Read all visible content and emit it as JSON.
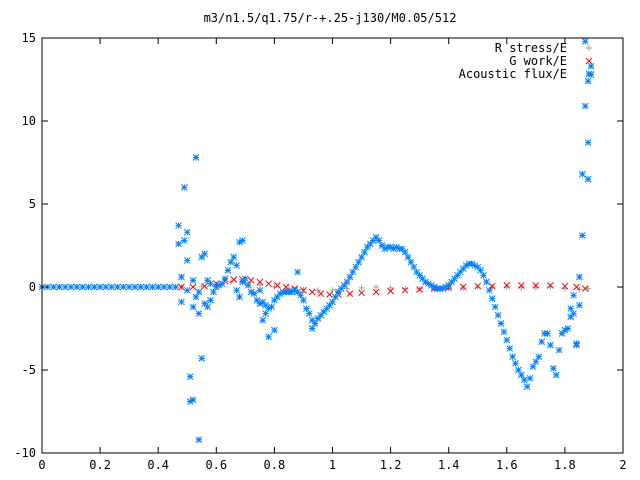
{
  "chart_data": {
    "type": "scatter",
    "title": "m3/n1.5/q1.75/r-+.25-j130/M0.05/512",
    "xlabel": "",
    "ylabel": "",
    "xlim": [
      0,
      2
    ],
    "ylim": [
      -10,
      15
    ],
    "x_ticks": [
      "0",
      "0.2",
      "0.4",
      "0.6",
      "0.8",
      "1",
      "1.2",
      "1.4",
      "1.6",
      "1.8",
      "2"
    ],
    "y_ticks": [
      "-10",
      "-5",
      "0",
      "5",
      "10",
      "15"
    ],
    "grid": false,
    "legend_position": "top-right",
    "series": [
      {
        "name": "R stress/E",
        "marker": "+",
        "color": "#a0a0a0",
        "points": [
          [
            0.48,
            0.0
          ],
          [
            0.55,
            0.05
          ],
          [
            0.6,
            0.15
          ],
          [
            0.65,
            0.3
          ],
          [
            0.7,
            0.25
          ],
          [
            0.75,
            0.1
          ],
          [
            0.8,
            0.0
          ],
          [
            0.85,
            -0.1
          ],
          [
            0.9,
            -0.15
          ],
          [
            0.95,
            -0.2
          ],
          [
            1.0,
            -0.2
          ],
          [
            1.05,
            -0.1
          ],
          [
            1.1,
            -0.05
          ],
          [
            1.15,
            0.0
          ],
          [
            1.2,
            -0.05
          ],
          [
            1.25,
            -0.1
          ],
          [
            1.3,
            -0.1
          ],
          [
            1.35,
            -0.1
          ],
          [
            1.4,
            -0.1
          ],
          [
            1.45,
            -0.05
          ],
          [
            1.5,
            0.0
          ],
          [
            1.55,
            0.0
          ],
          [
            1.6,
            0.0
          ],
          [
            1.65,
            -0.05
          ],
          [
            1.7,
            -0.05
          ],
          [
            1.75,
            0.0
          ],
          [
            1.8,
            -0.1
          ],
          [
            1.85,
            -0.15
          ],
          [
            1.88,
            -0.1
          ]
        ]
      },
      {
        "name": "G work/E",
        "marker": "x",
        "color": "#ff0000",
        "points": [
          [
            0.48,
            0.0
          ],
          [
            0.52,
            0.0
          ],
          [
            0.56,
            0.05
          ],
          [
            0.6,
            0.2
          ],
          [
            0.63,
            0.35
          ],
          [
            0.66,
            0.45
          ],
          [
            0.69,
            0.45
          ],
          [
            0.72,
            0.4
          ],
          [
            0.75,
            0.3
          ],
          [
            0.78,
            0.2
          ],
          [
            0.81,
            0.1
          ],
          [
            0.84,
            0.0
          ],
          [
            0.87,
            -0.1
          ],
          [
            0.9,
            -0.2
          ],
          [
            0.93,
            -0.3
          ],
          [
            0.96,
            -0.4
          ],
          [
            0.99,
            -0.45
          ],
          [
            1.02,
            -0.45
          ],
          [
            1.06,
            -0.4
          ],
          [
            1.1,
            -0.35
          ],
          [
            1.15,
            -0.3
          ],
          [
            1.2,
            -0.25
          ],
          [
            1.25,
            -0.2
          ],
          [
            1.3,
            -0.15
          ],
          [
            1.35,
            -0.1
          ],
          [
            1.4,
            -0.05
          ],
          [
            1.45,
            0.0
          ],
          [
            1.5,
            0.05
          ],
          [
            1.55,
            0.05
          ],
          [
            1.6,
            0.1
          ],
          [
            1.65,
            0.1
          ],
          [
            1.7,
            0.1
          ],
          [
            1.75,
            0.1
          ],
          [
            1.8,
            0.05
          ],
          [
            1.84,
            0.0
          ],
          [
            1.87,
            -0.1
          ]
        ]
      },
      {
        "name": "Acoustic flux/E",
        "marker": "*",
        "color": "#0080ff",
        "points": [
          [
            0.47,
            3.7
          ],
          [
            0.47,
            2.6
          ],
          [
            0.48,
            0.6
          ],
          [
            0.48,
            -0.9
          ],
          [
            0.49,
            6.0
          ],
          [
            0.49,
            2.8
          ],
          [
            0.5,
            3.3
          ],
          [
            0.5,
            1.6
          ],
          [
            0.5,
            -0.2
          ],
          [
            0.51,
            -6.9
          ],
          [
            0.51,
            -5.4
          ],
          [
            0.52,
            -6.8
          ],
          [
            0.52,
            0.4
          ],
          [
            0.52,
            -1.2
          ],
          [
            0.53,
            7.8
          ],
          [
            0.53,
            -0.6
          ],
          [
            0.54,
            -9.2
          ],
          [
            0.54,
            -1.6
          ],
          [
            0.54,
            -0.3
          ],
          [
            0.55,
            1.8
          ],
          [
            0.55,
            -4.3
          ],
          [
            0.56,
            2.0
          ],
          [
            0.56,
            -1.0
          ],
          [
            0.57,
            0.4
          ],
          [
            0.57,
            -1.2
          ],
          [
            0.58,
            -0.8
          ],
          [
            0.58,
            0.2
          ],
          [
            0.59,
            -0.3
          ],
          [
            0.6,
            0.0
          ],
          [
            0.61,
            0.1
          ],
          [
            0.62,
            0.2
          ],
          [
            0.63,
            0.5
          ],
          [
            0.64,
            1.0
          ],
          [
            0.65,
            1.5
          ],
          [
            0.66,
            1.8
          ],
          [
            0.67,
            1.3
          ],
          [
            0.67,
            -0.2
          ],
          [
            0.68,
            2.7
          ],
          [
            0.68,
            -0.6
          ],
          [
            0.69,
            2.8
          ],
          [
            0.69,
            0.3
          ],
          [
            0.7,
            0.5
          ],
          [
            0.71,
            0.1
          ],
          [
            0.72,
            -0.3
          ],
          [
            0.73,
            -0.4
          ],
          [
            0.74,
            -0.8
          ],
          [
            0.75,
            -1.0
          ],
          [
            0.75,
            -0.2
          ],
          [
            0.76,
            -0.9
          ],
          [
            0.76,
            -2.0
          ],
          [
            0.77,
            -1.1
          ],
          [
            0.77,
            -1.6
          ],
          [
            0.78,
            -3.0
          ],
          [
            0.78,
            -1.3
          ],
          [
            0.79,
            -1.2
          ],
          [
            0.8,
            -2.6
          ],
          [
            0.8,
            -0.8
          ],
          [
            0.81,
            -0.6
          ],
          [
            0.82,
            -0.4
          ],
          [
            0.83,
            -0.3
          ],
          [
            0.84,
            -0.3
          ],
          [
            0.85,
            -0.3
          ],
          [
            0.86,
            -0.3
          ],
          [
            0.87,
            -0.2
          ],
          [
            0.88,
            0.9
          ],
          [
            0.88,
            -0.3
          ],
          [
            0.89,
            -0.5
          ],
          [
            0.9,
            -0.8
          ],
          [
            0.91,
            -1.3
          ],
          [
            0.92,
            -1.6
          ],
          [
            0.93,
            -2.0
          ],
          [
            0.93,
            -2.5
          ],
          [
            0.94,
            -2.2
          ],
          [
            0.95,
            -1.9
          ],
          [
            0.96,
            -1.7
          ],
          [
            0.97,
            -1.5
          ],
          [
            0.98,
            -1.3
          ],
          [
            0.99,
            -1.1
          ],
          [
            1.0,
            -0.9
          ],
          [
            1.01,
            -0.6
          ],
          [
            1.02,
            -0.3
          ],
          [
            1.03,
            -0.1
          ],
          [
            1.04,
            0.1
          ],
          [
            1.05,
            0.3
          ],
          [
            1.06,
            0.6
          ],
          [
            1.07,
            0.9
          ],
          [
            1.08,
            1.2
          ],
          [
            1.09,
            1.5
          ],
          [
            1.1,
            1.8
          ],
          [
            1.11,
            2.1
          ],
          [
            1.12,
            2.4
          ],
          [
            1.13,
            2.6
          ],
          [
            1.14,
            2.8
          ],
          [
            1.15,
            3.0
          ],
          [
            1.16,
            2.8
          ],
          [
            1.17,
            2.5
          ],
          [
            1.18,
            2.3
          ],
          [
            1.19,
            2.4
          ],
          [
            1.2,
            2.4
          ],
          [
            1.21,
            2.3
          ],
          [
            1.22,
            2.4
          ],
          [
            1.23,
            2.3
          ],
          [
            1.24,
            2.3
          ],
          [
            1.25,
            2.1
          ],
          [
            1.26,
            1.8
          ],
          [
            1.27,
            1.5
          ],
          [
            1.28,
            1.2
          ],
          [
            1.29,
            0.9
          ],
          [
            1.3,
            0.7
          ],
          [
            1.31,
            0.5
          ],
          [
            1.32,
            0.3
          ],
          [
            1.33,
            0.2
          ],
          [
            1.34,
            0.1
          ],
          [
            1.35,
            0.0
          ],
          [
            1.36,
            -0.1
          ],
          [
            1.37,
            -0.1
          ],
          [
            1.38,
            -0.1
          ],
          [
            1.39,
            0.0
          ],
          [
            1.4,
            0.1
          ],
          [
            1.41,
            0.3
          ],
          [
            1.42,
            0.5
          ],
          [
            1.43,
            0.7
          ],
          [
            1.44,
            0.9
          ],
          [
            1.45,
            1.1
          ],
          [
            1.46,
            1.3
          ],
          [
            1.47,
            1.4
          ],
          [
            1.48,
            1.4
          ],
          [
            1.49,
            1.3
          ],
          [
            1.5,
            1.2
          ],
          [
            1.51,
            1.0
          ],
          [
            1.52,
            0.7
          ],
          [
            1.53,
            0.3
          ],
          [
            1.54,
            -0.2
          ],
          [
            1.55,
            -0.7
          ],
          [
            1.56,
            -1.2
          ],
          [
            1.57,
            -1.7
          ],
          [
            1.58,
            -2.2
          ],
          [
            1.59,
            -2.7
          ],
          [
            1.6,
            -3.2
          ],
          [
            1.61,
            -3.7
          ],
          [
            1.62,
            -4.2
          ],
          [
            1.63,
            -4.6
          ],
          [
            1.64,
            -5.0
          ],
          [
            1.65,
            -5.3
          ],
          [
            1.66,
            -5.6
          ],
          [
            1.67,
            -6.0
          ],
          [
            1.68,
            -5.5
          ],
          [
            1.69,
            -4.8
          ],
          [
            1.7,
            -4.5
          ],
          [
            1.71,
            -4.2
          ],
          [
            1.72,
            -3.3
          ],
          [
            1.73,
            -2.8
          ],
          [
            1.74,
            -2.8
          ],
          [
            1.75,
            -3.5
          ],
          [
            1.76,
            -4.9
          ],
          [
            1.77,
            -5.3
          ],
          [
            1.78,
            -3.8
          ],
          [
            1.79,
            -2.8
          ],
          [
            1.8,
            -2.6
          ],
          [
            1.81,
            -2.5
          ],
          [
            1.82,
            -1.3
          ],
          [
            1.82,
            -1.8
          ],
          [
            1.83,
            -0.5
          ],
          [
            1.83,
            -1.6
          ],
          [
            1.84,
            -3.5
          ],
          [
            1.84,
            -3.4
          ],
          [
            1.85,
            0.6
          ],
          [
            1.85,
            -1.1
          ],
          [
            1.86,
            3.1
          ],
          [
            1.86,
            6.8
          ],
          [
            1.87,
            10.9
          ],
          [
            1.87,
            14.8
          ],
          [
            1.88,
            12.4
          ],
          [
            1.88,
            8.7
          ],
          [
            1.88,
            6.5
          ],
          [
            1.89,
            13.3
          ],
          [
            1.89,
            12.8
          ],
          [
            0.0,
            0.0
          ],
          [
            0.02,
            0.0
          ],
          [
            0.04,
            0.0
          ],
          [
            0.06,
            0.0
          ],
          [
            0.08,
            0.0
          ],
          [
            0.1,
            0.0
          ],
          [
            0.12,
            0.0
          ],
          [
            0.14,
            0.0
          ],
          [
            0.16,
            0.0
          ],
          [
            0.18,
            0.0
          ],
          [
            0.2,
            0.0
          ],
          [
            0.22,
            0.0
          ],
          [
            0.24,
            0.0
          ],
          [
            0.26,
            0.0
          ],
          [
            0.28,
            0.0
          ],
          [
            0.3,
            0.0
          ],
          [
            0.32,
            0.0
          ],
          [
            0.34,
            0.0
          ],
          [
            0.36,
            0.0
          ],
          [
            0.38,
            0.0
          ],
          [
            0.4,
            0.0
          ],
          [
            0.42,
            0.0
          ],
          [
            0.44,
            0.0
          ],
          [
            0.46,
            0.0
          ]
        ]
      }
    ]
  }
}
